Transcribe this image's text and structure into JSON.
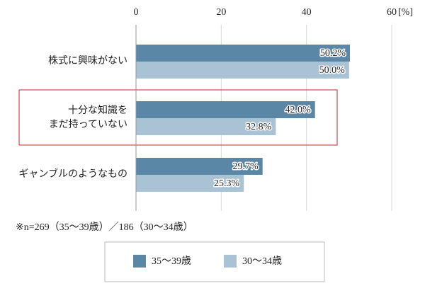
{
  "chart_data": {
    "type": "hbar",
    "categories": [
      "株式に興味がない",
      "十分な知識を\nまだ持っていない",
      "ギャンブルのようなもの"
    ],
    "series": [
      {
        "name": "35〜39歳",
        "color": "#5b87a7",
        "values": [
          50.2,
          42.0,
          29.7
        ],
        "value_labels": [
          "50.2%",
          "42.0%",
          "29.7%"
        ]
      },
      {
        "name": "30〜34歳",
        "color": "#a9c3d5",
        "values": [
          50.0,
          32.8,
          25.3
        ],
        "value_labels": [
          "50.0%",
          "32.8%",
          "25.3%"
        ]
      }
    ],
    "xlim": [
      0,
      60
    ],
    "xticks": [
      0,
      20,
      40,
      60
    ],
    "x_unit": "[%]",
    "grid": true,
    "highlight_category": 1,
    "highlight_color": "#c0282d",
    "note": "※n=269（35〜39歳）／186（30〜34歳）",
    "legend": "bottom"
  }
}
